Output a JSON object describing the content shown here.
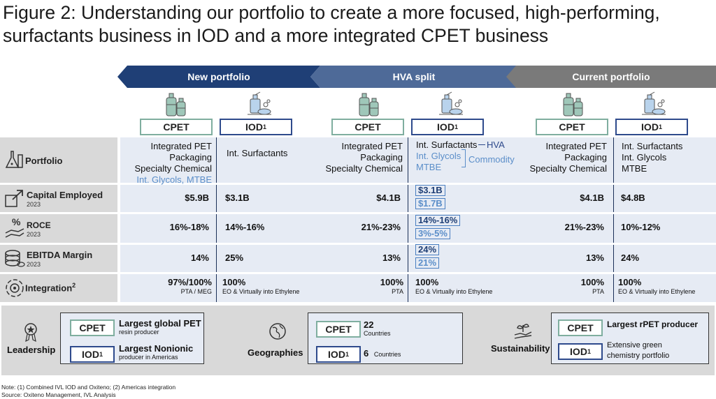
{
  "title": "Figure 2: Understanding our portfolio to create a more focused, high-performing, surfactants business in IOD and a more integrated CPET business",
  "banners": [
    "New portfolio",
    "HVA split",
    "Current portfolio"
  ],
  "colors": {
    "new": "#1f3f76",
    "hva": "#4e6a98",
    "current": "#7a7a7a",
    "cpet_border": "#7fae9f",
    "iod_border": "#2e4a8c",
    "panel": "#e6ebf4",
    "rowhead": "#d9d9d9",
    "commodity_blue": "#5b8ec9"
  },
  "tags": {
    "cpet": "CPET",
    "iod": "IOD",
    "iod_sup": "1"
  },
  "rows": {
    "portfolio": {
      "label": "Portfolio",
      "icon": "flask-icon"
    },
    "capital": {
      "label": "Capital Employed",
      "year": "2023",
      "icon": "arrow-box-icon"
    },
    "roce": {
      "label": "ROCE",
      "year": "2023",
      "icon": "percent-hand-icon"
    },
    "ebitda": {
      "label": "EBITDA Margin",
      "year": "2023",
      "icon": "coins-icon"
    },
    "integration": {
      "label": "Integration",
      "sup": "2",
      "icon": "gear-cycle-icon"
    }
  },
  "new_portfolio": {
    "cpet": {
      "portfolio": [
        "Integrated PET",
        "Packaging",
        "Specialty Chemical",
        "Int. Glycols, MTBE"
      ],
      "capital": "$5.9B",
      "roce": "16%-18%",
      "ebitda": "14%",
      "integration": "97%/100%",
      "integration_sub": "PTA / MEG"
    },
    "iod": {
      "portfolio": [
        "Int. Surfactants"
      ],
      "capital": "$3.1B",
      "roce": "14%-16%",
      "ebitda": "25%",
      "integration": "100%",
      "integration_sub": "EO & Virtually into Ethylene"
    }
  },
  "hva_split": {
    "cpet": {
      "portfolio": [
        "Integrated PET",
        "Packaging",
        "Specialty Chemical"
      ],
      "capital": "$4.1B",
      "roce": "21%-23%",
      "ebitda": "13%",
      "integration": "100%",
      "integration_sub": "PTA"
    },
    "iod": {
      "portfolio": [
        "Int. Surfactants",
        "Int. Glycols",
        "MTBE"
      ],
      "hva_label": "HVA",
      "commodity_label": "Commodity",
      "capital": [
        "$3.1B",
        "$1.7B"
      ],
      "roce": [
        "14%-16%",
        "3%-5%"
      ],
      "ebitda": [
        "24%",
        "21%"
      ],
      "integration": "100%",
      "integration_sub": "EO & Virtually into Ethylene"
    }
  },
  "current_portfolio": {
    "cpet": {
      "portfolio": [
        "Integrated PET",
        "Packaging",
        "Specialty Chemical"
      ],
      "capital": "$4.1B",
      "roce": "21%-23%",
      "ebitda": "13%",
      "integration": "100%",
      "integration_sub": "PTA"
    },
    "iod": {
      "portfolio": [
        "Int. Surfactants",
        "Int. Glycols",
        "MTBE"
      ],
      "capital": "$4.8B",
      "roce": "10%-12%",
      "ebitda": "24%",
      "integration": "100%",
      "integration_sub": "EO & Virtually into Ethylene"
    }
  },
  "bottom": {
    "leadership": {
      "label": "Leadership",
      "cpet_main": "Largest global PET",
      "cpet_sub": "resin producer",
      "iod_main": "Largest Nonionic",
      "iod_sub": "producer in Americas"
    },
    "geographies": {
      "label": "Geographies",
      "cpet_main": "22",
      "cpet_sub": "Countries",
      "iod_main": "6",
      "iod_sub": "Countries"
    },
    "sustainability": {
      "label": "Sustainability",
      "cpet_text": "Largest rPET producer",
      "iod_line1": "Extensive green",
      "iod_line2": "chemistry portfolio"
    }
  },
  "notes": [
    "Note: (1) Combined IVL IOD and Oxiteno; (2) Americas integration",
    "Source: Oxiteno Management, IVL Analysis"
  ]
}
